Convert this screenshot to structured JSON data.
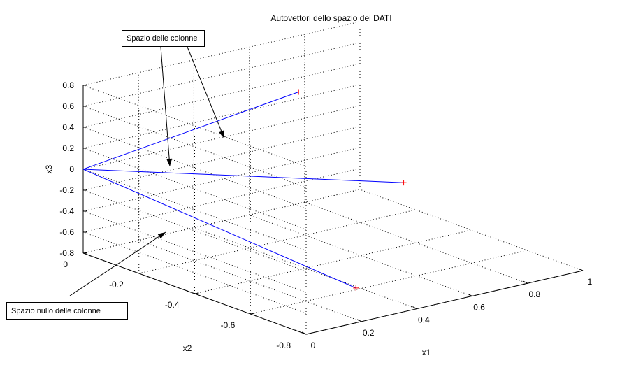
{
  "chart_data": {
    "type": "line",
    "title": "Autovettori dello spazio dei DATI",
    "xlabel": "x1",
    "ylabel": "x2",
    "zlabel": "x3",
    "xlim": [
      0,
      1
    ],
    "ylim": [
      -0.8,
      0
    ],
    "zlim": [
      -0.8,
      0.8
    ],
    "x_ticks": [
      "0",
      "0.2",
      "0.4",
      "0.6",
      "0.8",
      "1"
    ],
    "y_ticks": [
      "0",
      "-0.2",
      "-0.4",
      "-0.6",
      "-0.8"
    ],
    "z_ticks": [
      "0.8",
      "0.6",
      "0.4",
      "0.2",
      "0",
      "-0.2",
      "-0.4",
      "-0.6",
      "-0.8"
    ],
    "grid": true,
    "series": [
      {
        "color": "#0000ff",
        "marker_color": "#ff0000",
        "points": [
          [
            0,
            0,
            0
          ],
          [
            0.577,
            -0.2,
            0.58
          ]
        ]
      },
      {
        "color": "#0000ff",
        "marker_color": "#ff0000",
        "points": [
          [
            0,
            0,
            0
          ],
          [
            0.577,
            -0.577,
            0.08
          ]
        ]
      },
      {
        "color": "#0000ff",
        "marker_color": "#ff0000",
        "points": [
          [
            0,
            0,
            0
          ],
          [
            0.2,
            -0.78,
            -0.5
          ]
        ]
      }
    ],
    "annotations": [
      {
        "text": "Spazio delle colonne"
      },
      {
        "text": "Spazio nullo delle colonne"
      }
    ]
  }
}
